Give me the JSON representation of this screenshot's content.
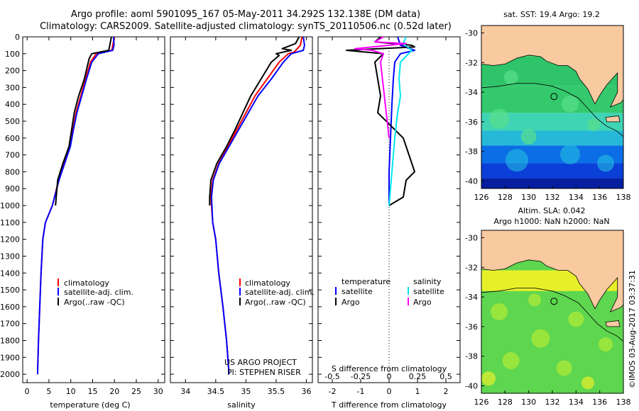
{
  "header": {
    "title_line1": "Argo profile: aoml 5901095_167 05-May-2011 34.292S 132.138E (DM data)",
    "title_line2": "Climatology: CARS2009. Satellite-adjusted climatology: synTS_20110506.nc (0.52d later)"
  },
  "footer": {
    "project_line1": "US ARGO PROJECT",
    "project_line2": "PI: STEPHEN RISER",
    "stamp": "©IMOS 03-Aug-2017 03:37:31"
  },
  "colors": {
    "climatology": "#ff0000",
    "satellite": "#0000ff",
    "argo": "#000000",
    "salinity_satellite": "#00e5ee",
    "salinity_argo": "#ff00ff",
    "land": "#f9c9a0"
  },
  "chart_data": [
    {
      "type": "line",
      "xlabel": "temperature (deg C)",
      "ylabel": "",
      "xlim": [
        -1,
        31.5
      ],
      "ylim": [
        2050,
        0
      ],
      "xticks": [
        0,
        5,
        10,
        15,
        20,
        25,
        30
      ],
      "yticks": [
        0,
        100,
        200,
        300,
        400,
        500,
        600,
        700,
        800,
        900,
        1000,
        1100,
        1200,
        1300,
        1400,
        1500,
        1600,
        1700,
        1800,
        1900,
        2000
      ],
      "legend": [
        "climatology",
        "satellite-adj. clim.",
        "Argo(..raw -QC)"
      ],
      "series": [
        {
          "name": "climatology",
          "color": "#ff0000",
          "points": [
            [
              20.0,
              0
            ],
            [
              19.6,
              50
            ],
            [
              19.4,
              80
            ],
            [
              15.8,
              100
            ],
            [
              14.5,
              150
            ],
            [
              13.4,
              250
            ],
            [
              12.3,
              350
            ],
            [
              11.2,
              450
            ],
            [
              10.5,
              550
            ],
            [
              9.8,
              650
            ],
            [
              8.5,
              750
            ],
            [
              7.2,
              850
            ],
            [
              5.8,
              1000
            ],
            [
              4.2,
              1100
            ],
            [
              3.6,
              1200
            ],
            [
              3.2,
              1400
            ],
            [
              2.9,
              1600
            ],
            [
              2.6,
              1800
            ],
            [
              2.4,
              2000
            ]
          ]
        },
        {
          "name": "satellite-adj. clim.",
          "color": "#0000ff",
          "points": [
            [
              19.8,
              0
            ],
            [
              19.9,
              50
            ],
            [
              19.6,
              80
            ],
            [
              16.3,
              100
            ],
            [
              14.8,
              150
            ],
            [
              13.6,
              250
            ],
            [
              12.5,
              350
            ],
            [
              11.4,
              450
            ],
            [
              10.6,
              550
            ],
            [
              9.9,
              650
            ],
            [
              8.6,
              750
            ],
            [
              7.3,
              850
            ],
            [
              5.8,
              1000
            ],
            [
              4.2,
              1100
            ],
            [
              3.6,
              1200
            ],
            [
              3.2,
              1400
            ],
            [
              2.9,
              1600
            ],
            [
              2.6,
              1800
            ],
            [
              2.4,
              2000
            ]
          ]
        },
        {
          "name": "Argo(..raw -QC)",
          "color": "#000000",
          "points": [
            [
              19.3,
              0
            ],
            [
              19.0,
              40
            ],
            [
              18.7,
              80
            ],
            [
              14.8,
              100
            ],
            [
              14.2,
              130
            ],
            [
              13.1,
              250
            ],
            [
              11.8,
              350
            ],
            [
              10.8,
              450
            ],
            [
              10.2,
              550
            ],
            [
              9.6,
              650
            ],
            [
              8.2,
              750
            ],
            [
              7.0,
              850
            ],
            [
              6.5,
              1000
            ]
          ]
        }
      ]
    },
    {
      "type": "line",
      "xlabel": "salinity",
      "ylabel": "",
      "xlim": [
        33.75,
        36.1
      ],
      "ylim": [
        2050,
        0
      ],
      "xticks": [
        34,
        34.5,
        35,
        35.5,
        36
      ],
      "legend": [
        "climatology",
        "satellite-adj. clim.",
        "Argo(..raw -QC)"
      ],
      "series": [
        {
          "name": "climatology",
          "color": "#ff0000",
          "points": [
            [
              35.93,
              0
            ],
            [
              35.9,
              50
            ],
            [
              35.8,
              90
            ],
            [
              35.7,
              100
            ],
            [
              35.55,
              150
            ],
            [
              35.35,
              250
            ],
            [
              35.15,
              350
            ],
            [
              35.0,
              450
            ],
            [
              34.85,
              550
            ],
            [
              34.7,
              650
            ],
            [
              34.55,
              750
            ],
            [
              34.45,
              850
            ],
            [
              34.42,
              950
            ],
            [
              34.45,
              1100
            ],
            [
              34.5,
              1200
            ],
            [
              34.55,
              1400
            ],
            [
              34.62,
              1600
            ],
            [
              34.68,
              1800
            ],
            [
              34.72,
              2000
            ]
          ]
        },
        {
          "name": "satellite-adj. clim.",
          "color": "#0000ff",
          "points": [
            [
              35.95,
              0
            ],
            [
              35.97,
              50
            ],
            [
              35.95,
              80
            ],
            [
              35.75,
              100
            ],
            [
              35.62,
              150
            ],
            [
              35.42,
              250
            ],
            [
              35.2,
              350
            ],
            [
              35.04,
              450
            ],
            [
              34.88,
              550
            ],
            [
              34.72,
              650
            ],
            [
              34.56,
              750
            ],
            [
              34.46,
              850
            ],
            [
              34.43,
              950
            ],
            [
              34.45,
              1100
            ],
            [
              34.5,
              1200
            ],
            [
              34.55,
              1400
            ],
            [
              34.62,
              1600
            ],
            [
              34.68,
              1800
            ],
            [
              34.72,
              2000
            ]
          ]
        },
        {
          "name": "Argo(..raw -QC)",
          "color": "#000000",
          "points": [
            [
              35.88,
              0
            ],
            [
              35.82,
              40
            ],
            [
              35.6,
              70
            ],
            [
              35.75,
              80
            ],
            [
              35.5,
              100
            ],
            [
              35.55,
              110
            ],
            [
              35.42,
              150
            ],
            [
              35.25,
              250
            ],
            [
              35.08,
              350
            ],
            [
              34.95,
              450
            ],
            [
              34.82,
              550
            ],
            [
              34.68,
              650
            ],
            [
              34.52,
              750
            ],
            [
              34.42,
              850
            ],
            [
              34.4,
              950
            ],
            [
              34.4,
              1000
            ]
          ]
        }
      ]
    },
    {
      "type": "line",
      "xlabel": "T difference from climatology",
      "xlabel_top": "S difference from climatology",
      "xlim": [
        -2.5,
        2.5
      ],
      "ylim": [
        2050,
        0
      ],
      "xticks": [
        -2,
        -1,
        0,
        1,
        2
      ],
      "xtick_labels_top": [
        "-0.5",
        "-0.25",
        "0",
        "0.25",
        "0.5"
      ],
      "legend_temperature": {
        "heading": "temperature",
        "items": [
          "satellite",
          "Argo"
        ]
      },
      "legend_salinity": {
        "heading": "salinity",
        "items": [
          "satellite",
          "Argo"
        ]
      },
      "series": [
        {
          "name": "satellite",
          "group": "temperature",
          "color": "#0000ff",
          "points": [
            [
              0.3,
              0
            ],
            [
              0.4,
              50
            ],
            [
              0.9,
              80
            ],
            [
              0.4,
              100
            ],
            [
              0.2,
              150
            ],
            [
              0.15,
              250
            ],
            [
              0.1,
              400
            ],
            [
              0.05,
              600
            ],
            [
              0.0,
              800
            ],
            [
              0.0,
              1000
            ]
          ]
        },
        {
          "name": "Argo",
          "group": "temperature",
          "color": "#000000",
          "points": [
            [
              -0.3,
              0
            ],
            [
              -0.5,
              30
            ],
            [
              0.8,
              50
            ],
            [
              0.9,
              60
            ],
            [
              -1.5,
              80
            ],
            [
              -0.2,
              100
            ],
            [
              -0.5,
              150
            ],
            [
              -0.4,
              250
            ],
            [
              -0.3,
              350
            ],
            [
              -0.4,
              450
            ],
            [
              0.2,
              550
            ],
            [
              0.5,
              600
            ],
            [
              0.6,
              650
            ],
            [
              0.7,
              700
            ],
            [
              0.9,
              800
            ],
            [
              0.6,
              850
            ],
            [
              0.5,
              950
            ],
            [
              0.0,
              1000
            ]
          ]
        },
        {
          "name": "satellite",
          "group": "salinity",
          "color": "#00e5ee",
          "points": [
            [
              0.6,
              0
            ],
            [
              0.5,
              40
            ],
            [
              0.8,
              80
            ],
            [
              0.4,
              150
            ],
            [
              0.35,
              250
            ],
            [
              0.4,
              350
            ],
            [
              0.3,
              450
            ],
            [
              0.2,
              600
            ],
            [
              0.1,
              800
            ],
            [
              0.0,
              1000
            ]
          ]
        },
        {
          "name": "Argo",
          "group": "salinity",
          "color": "#ff00ff",
          "points": [
            [
              -0.2,
              0
            ],
            [
              -0.5,
              30
            ],
            [
              0.6,
              40
            ],
            [
              -1.2,
              70
            ],
            [
              -0.6,
              80
            ],
            [
              -0.2,
              100
            ],
            [
              -0.3,
              150
            ],
            [
              -0.2,
              300
            ],
            [
              -0.1,
              450
            ],
            [
              0.0,
              600
            ]
          ]
        }
      ]
    }
  ],
  "maps": [
    {
      "title": "sat. SST: 19.4 Argo: 19.2",
      "subtitle": "",
      "xlim": [
        126,
        138
      ],
      "ylim": [
        -40.5,
        -29.5
      ],
      "xticks": [
        126,
        128,
        130,
        132,
        134,
        136,
        138
      ],
      "yticks": [
        -30,
        -32,
        -34,
        -36,
        -38,
        -40
      ],
      "marker": {
        "lon": 132.138,
        "lat": -34.292
      },
      "field": "sst"
    },
    {
      "title": "Altim. SLA: 0.042",
      "subtitle": "Argo h1000: NaN h2000: NaN",
      "xlim": [
        126,
        138
      ],
      "ylim": [
        -40.5,
        -29.5
      ],
      "xticks": [
        126,
        128,
        130,
        132,
        134,
        136,
        138
      ],
      "yticks": [
        -30,
        -32,
        -34,
        -36,
        -38,
        -40
      ],
      "marker": {
        "lon": 132.138,
        "lat": -34.292
      },
      "field": "sla"
    }
  ]
}
